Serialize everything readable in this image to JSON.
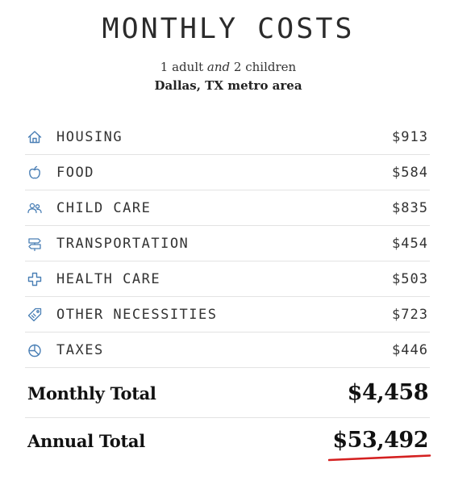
{
  "header": {
    "title": "MONTHLY COSTS",
    "household_adults": "1 adult",
    "household_and": "and",
    "household_children": "2 children",
    "location": "Dallas, TX metro area"
  },
  "costs": [
    {
      "icon": "house-icon",
      "label": "HOUSING",
      "amount": "$913"
    },
    {
      "icon": "apple-icon",
      "label": "FOOD",
      "amount": "$584"
    },
    {
      "icon": "people-icon",
      "label": "CHILD CARE",
      "amount": "$835"
    },
    {
      "icon": "signpost-icon",
      "label": "TRANSPORTATION",
      "amount": "$454"
    },
    {
      "icon": "medical-cross-icon",
      "label": "HEALTH CARE",
      "amount": "$503"
    },
    {
      "icon": "tag-icon",
      "label": "OTHER NECESSITIES",
      "amount": "$723"
    },
    {
      "icon": "pie-chart-icon",
      "label": "TAXES",
      "amount": "$446"
    }
  ],
  "totals": {
    "monthly_label": "Monthly Total",
    "monthly_value": "$4,458",
    "annual_label": "Annual Total",
    "annual_value": "$53,492"
  },
  "colors": {
    "icon": "#4a7fb5",
    "underline": "#d42020",
    "divider": "#e3e3e3"
  }
}
